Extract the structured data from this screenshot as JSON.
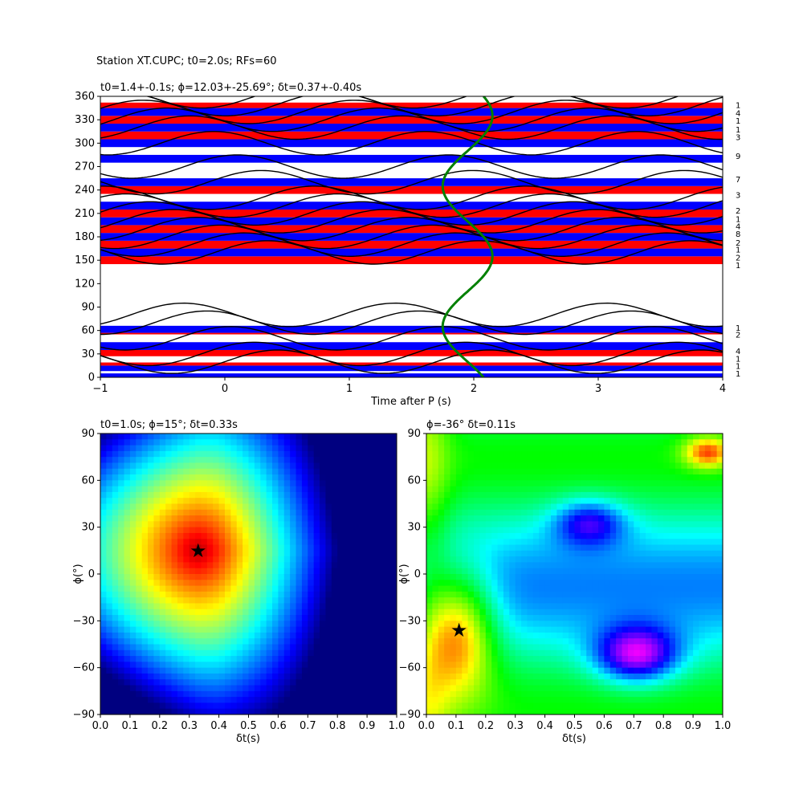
{
  "figure": {
    "title": "Station XT.CUPC; t0=2.0s; RFs=60"
  },
  "chart_data": [
    {
      "type": "line",
      "title": "t0=1.4+-0.1s; ϕ=12.03+-25.69°; δt=0.37+-0.40s",
      "xlabel": "Time after P (s)",
      "ylabel": "",
      "xlim": [
        -1,
        4
      ],
      "ylim": [
        0,
        360
      ],
      "xticks": [
        "−1",
        "0",
        "1",
        "2",
        "3",
        "4"
      ],
      "yticks": [
        "0",
        "30",
        "60",
        "90",
        "120",
        "150",
        "180",
        "210",
        "240",
        "270",
        "300",
        "330",
        "360"
      ],
      "stripe_colors": {
        "positive": "#ff0000",
        "negative": "#0000ff",
        "trace": "#000000",
        "curve": "#008000"
      },
      "stripes": [
        {
          "y0": 0,
          "y1": 5,
          "color": "blue"
        },
        {
          "y0": 8,
          "y1": 15,
          "color": "blue"
        },
        {
          "y0": 15,
          "y1": 19,
          "color": "red"
        },
        {
          "y0": 27,
          "y1": 35,
          "color": "red"
        },
        {
          "y0": 35,
          "y1": 45,
          "color": "blue"
        },
        {
          "y0": 55,
          "y1": 57,
          "color": "red"
        },
        {
          "y0": 57,
          "y1": 66,
          "color": "blue"
        },
        {
          "y0": 145,
          "y1": 155,
          "color": "red"
        },
        {
          "y0": 155,
          "y1": 165,
          "color": "blue"
        },
        {
          "y0": 165,
          "y1": 175,
          "color": "red"
        },
        {
          "y0": 175,
          "y1": 185,
          "color": "blue"
        },
        {
          "y0": 185,
          "y1": 195,
          "color": "red"
        },
        {
          "y0": 195,
          "y1": 205,
          "color": "blue"
        },
        {
          "y0": 205,
          "y1": 215,
          "color": "red"
        },
        {
          "y0": 215,
          "y1": 225,
          "color": "blue"
        },
        {
          "y0": 235,
          "y1": 245,
          "color": "red"
        },
        {
          "y0": 245,
          "y1": 255,
          "color": "blue"
        },
        {
          "y0": 275,
          "y1": 285,
          "color": "blue"
        },
        {
          "y0": 295,
          "y1": 305,
          "color": "blue"
        },
        {
          "y0": 305,
          "y1": 315,
          "color": "red"
        },
        {
          "y0": 315,
          "y1": 325,
          "color": "blue"
        },
        {
          "y0": 325,
          "y1": 335,
          "color": "red"
        },
        {
          "y0": 335,
          "y1": 345,
          "color": "blue"
        },
        {
          "y0": 345,
          "y1": 352,
          "color": "red"
        }
      ],
      "traces": [
        {
          "baseline": 5,
          "amplitude": 30,
          "phase": 0.0
        },
        {
          "baseline": 15,
          "amplitude": 30,
          "phase": 0.7
        },
        {
          "baseline": 35,
          "amplitude": 30,
          "phase": 1.4
        },
        {
          "baseline": 55,
          "amplitude": 30,
          "phase": 2.1
        },
        {
          "baseline": 65,
          "amplitude": 30,
          "phase": 2.8
        },
        {
          "baseline": 145,
          "amplitude": 30,
          "phase": 0.3
        },
        {
          "baseline": 155,
          "amplitude": 30,
          "phase": 1.0
        },
        {
          "baseline": 165,
          "amplitude": 30,
          "phase": 1.7
        },
        {
          "baseline": 175,
          "amplitude": 30,
          "phase": 2.4
        },
        {
          "baseline": 185,
          "amplitude": 30,
          "phase": 3.1
        },
        {
          "baseline": 195,
          "amplitude": 30,
          "phase": 3.8
        },
        {
          "baseline": 205,
          "amplitude": 30,
          "phase": 4.5
        },
        {
          "baseline": 215,
          "amplitude": 30,
          "phase": 5.2
        },
        {
          "baseline": 235,
          "amplitude": 30,
          "phase": 0.5
        },
        {
          "baseline": 255,
          "amplitude": 30,
          "phase": 1.2
        },
        {
          "baseline": 285,
          "amplitude": 30,
          "phase": 1.9
        },
        {
          "baseline": 305,
          "amplitude": 30,
          "phase": 2.6
        },
        {
          "baseline": 315,
          "amplitude": 30,
          "phase": 3.3
        },
        {
          "baseline": 325,
          "amplitude": 30,
          "phase": 4.0
        },
        {
          "baseline": 335,
          "amplitude": 30,
          "phase": 4.7
        },
        {
          "baseline": 345,
          "amplitude": 30,
          "phase": 5.4
        }
      ],
      "green_curve": {
        "center_x": 1.95,
        "amplitude_x": 0.2,
        "period_deg": 180,
        "phase_deg": 110
      },
      "count_labels": [
        {
          "value": "1",
          "y": 348
        },
        {
          "value": "4",
          "y": 338
        },
        {
          "value": "1",
          "y": 328
        },
        {
          "value": "1",
          "y": 317
        },
        {
          "value": "3",
          "y": 307
        },
        {
          "value": "9",
          "y": 283
        },
        {
          "value": "7",
          "y": 253
        },
        {
          "value": "3",
          "y": 233
        },
        {
          "value": "2",
          "y": 213
        },
        {
          "value": "1",
          "y": 202
        },
        {
          "value": "4",
          "y": 193
        },
        {
          "value": "8",
          "y": 183
        },
        {
          "value": "2",
          "y": 172
        },
        {
          "value": "1",
          "y": 163
        },
        {
          "value": "2",
          "y": 153
        },
        {
          "value": "1",
          "y": 143
        },
        {
          "value": "1",
          "y": 63
        },
        {
          "value": "2",
          "y": 54
        },
        {
          "value": "4",
          "y": 33
        },
        {
          "value": "1",
          "y": 23
        },
        {
          "value": "1",
          "y": 14
        },
        {
          "value": "1",
          "y": 4
        }
      ]
    },
    {
      "type": "heatmap",
      "title": "t0=1.0s; ϕ=15°; δt=0.33s",
      "xlabel": "δt(s)",
      "ylabel": "ϕ(°)",
      "xlim": [
        0,
        1
      ],
      "ylim": [
        -90,
        90
      ],
      "xticks": [
        "0.0",
        "0.1",
        "0.2",
        "0.3",
        "0.4",
        "0.5",
        "0.6",
        "0.7",
        "0.8",
        "0.9",
        "1.0"
      ],
      "yticks": [
        "−90",
        "−60",
        "−30",
        "0",
        "30",
        "60",
        "90"
      ],
      "star": {
        "x": 0.33,
        "y": 15
      },
      "colormap": "jet"
    },
    {
      "type": "heatmap",
      "title": "ϕ=-36° δt=0.11s",
      "xlabel": "δt(s)",
      "ylabel": "ϕ(°)",
      "xlim": [
        0,
        1
      ],
      "ylim": [
        -90,
        90
      ],
      "xticks": [
        "0.0",
        "0.1",
        "0.2",
        "0.3",
        "0.4",
        "0.5",
        "0.6",
        "0.7",
        "0.8",
        "0.9",
        "1.0"
      ],
      "yticks": [
        "−90",
        "−60",
        "−30",
        "0",
        "30",
        "60",
        "90"
      ],
      "star": {
        "x": 0.11,
        "y": -36
      },
      "colormap": "hsv"
    }
  ]
}
